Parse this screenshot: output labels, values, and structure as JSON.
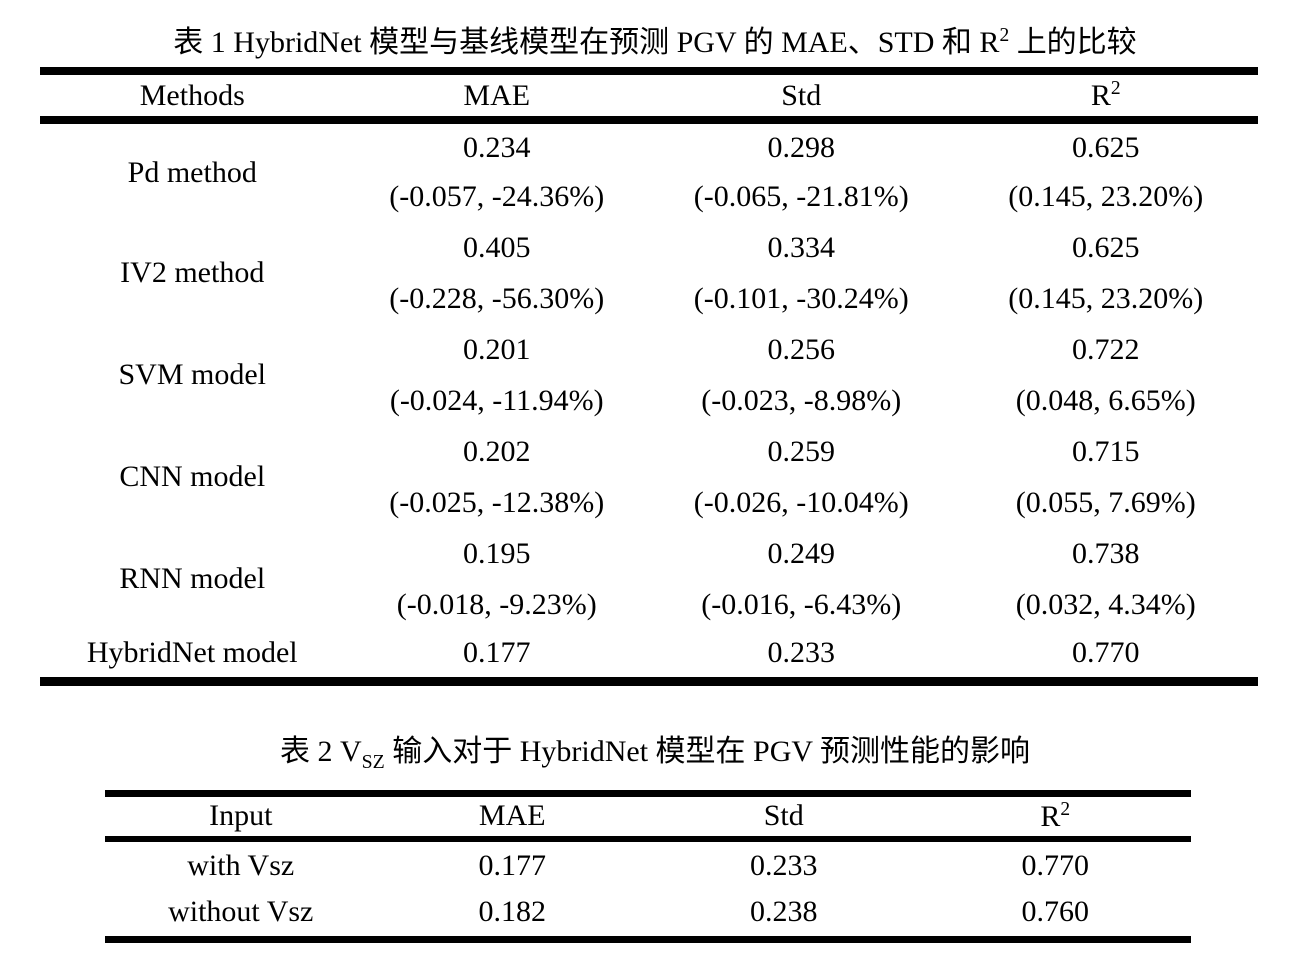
{
  "colors": {
    "text": "#000000",
    "background": "#ffffff",
    "rule": "#000000"
  },
  "table1": {
    "title": {
      "prefix": "表 1 HybridNet 模型与基线模型在预测 PGV 的 MAE、STD 和 R",
      "sup": "2",
      "suffix": " 上的比较"
    },
    "headers": {
      "col1": "Methods",
      "col2": "MAE",
      "col3": "Std",
      "col4_base": "R",
      "col4_sup": "2"
    },
    "rows": [
      {
        "method": "Pd method",
        "mae": "0.234",
        "mae_delta": "(-0.057, -24.36%)",
        "std": "0.298",
        "std_delta": "(-0.065, -21.81%)",
        "r2": "0.625",
        "r2_delta": "(0.145, 23.20%)"
      },
      {
        "method": "IV2 method",
        "mae": "0.405",
        "mae_delta": "(-0.228, -56.30%)",
        "std": "0.334",
        "std_delta": "(-0.101, -30.24%)",
        "r2": "0.625",
        "r2_delta": "(0.145, 23.20%)"
      },
      {
        "method": "SVM model",
        "mae": "0.201",
        "mae_delta": "(-0.024, -11.94%)",
        "std": "0.256",
        "std_delta": "(-0.023, -8.98%)",
        "r2": "0.722",
        "r2_delta": "(0.048, 6.65%)"
      },
      {
        "method": "CNN model",
        "mae": "0.202",
        "mae_delta": "(-0.025, -12.38%)",
        "std": "0.259",
        "std_delta": "(-0.026, -10.04%)",
        "r2": "0.715",
        "r2_delta": "(0.055, 7.69%)"
      },
      {
        "method": "RNN model",
        "mae": "0.195",
        "mae_delta": "(-0.018, -9.23%)",
        "std": "0.249",
        "std_delta": "(-0.016, -6.43%)",
        "r2": "0.738",
        "r2_delta": "(0.032, 4.34%)"
      },
      {
        "method": "HybridNet model",
        "mae": "0.177",
        "std": "0.233",
        "r2": "0.770"
      }
    ]
  },
  "table2": {
    "title": {
      "prefix": "表 2 V",
      "sub": "SZ",
      "suffix": " 输入对于 HybridNet 模型在 PGV 预测性能的影响"
    },
    "headers": {
      "col1": "Input",
      "col2": "MAE",
      "col3": "Std",
      "col4_base": "R",
      "col4_sup": "2"
    },
    "rows": [
      {
        "input": "with Vsz",
        "mae": "0.177",
        "std": "0.233",
        "r2": "0.770"
      },
      {
        "input": "without Vsz",
        "mae": "0.182",
        "std": "0.238",
        "r2": "0.760"
      }
    ]
  }
}
